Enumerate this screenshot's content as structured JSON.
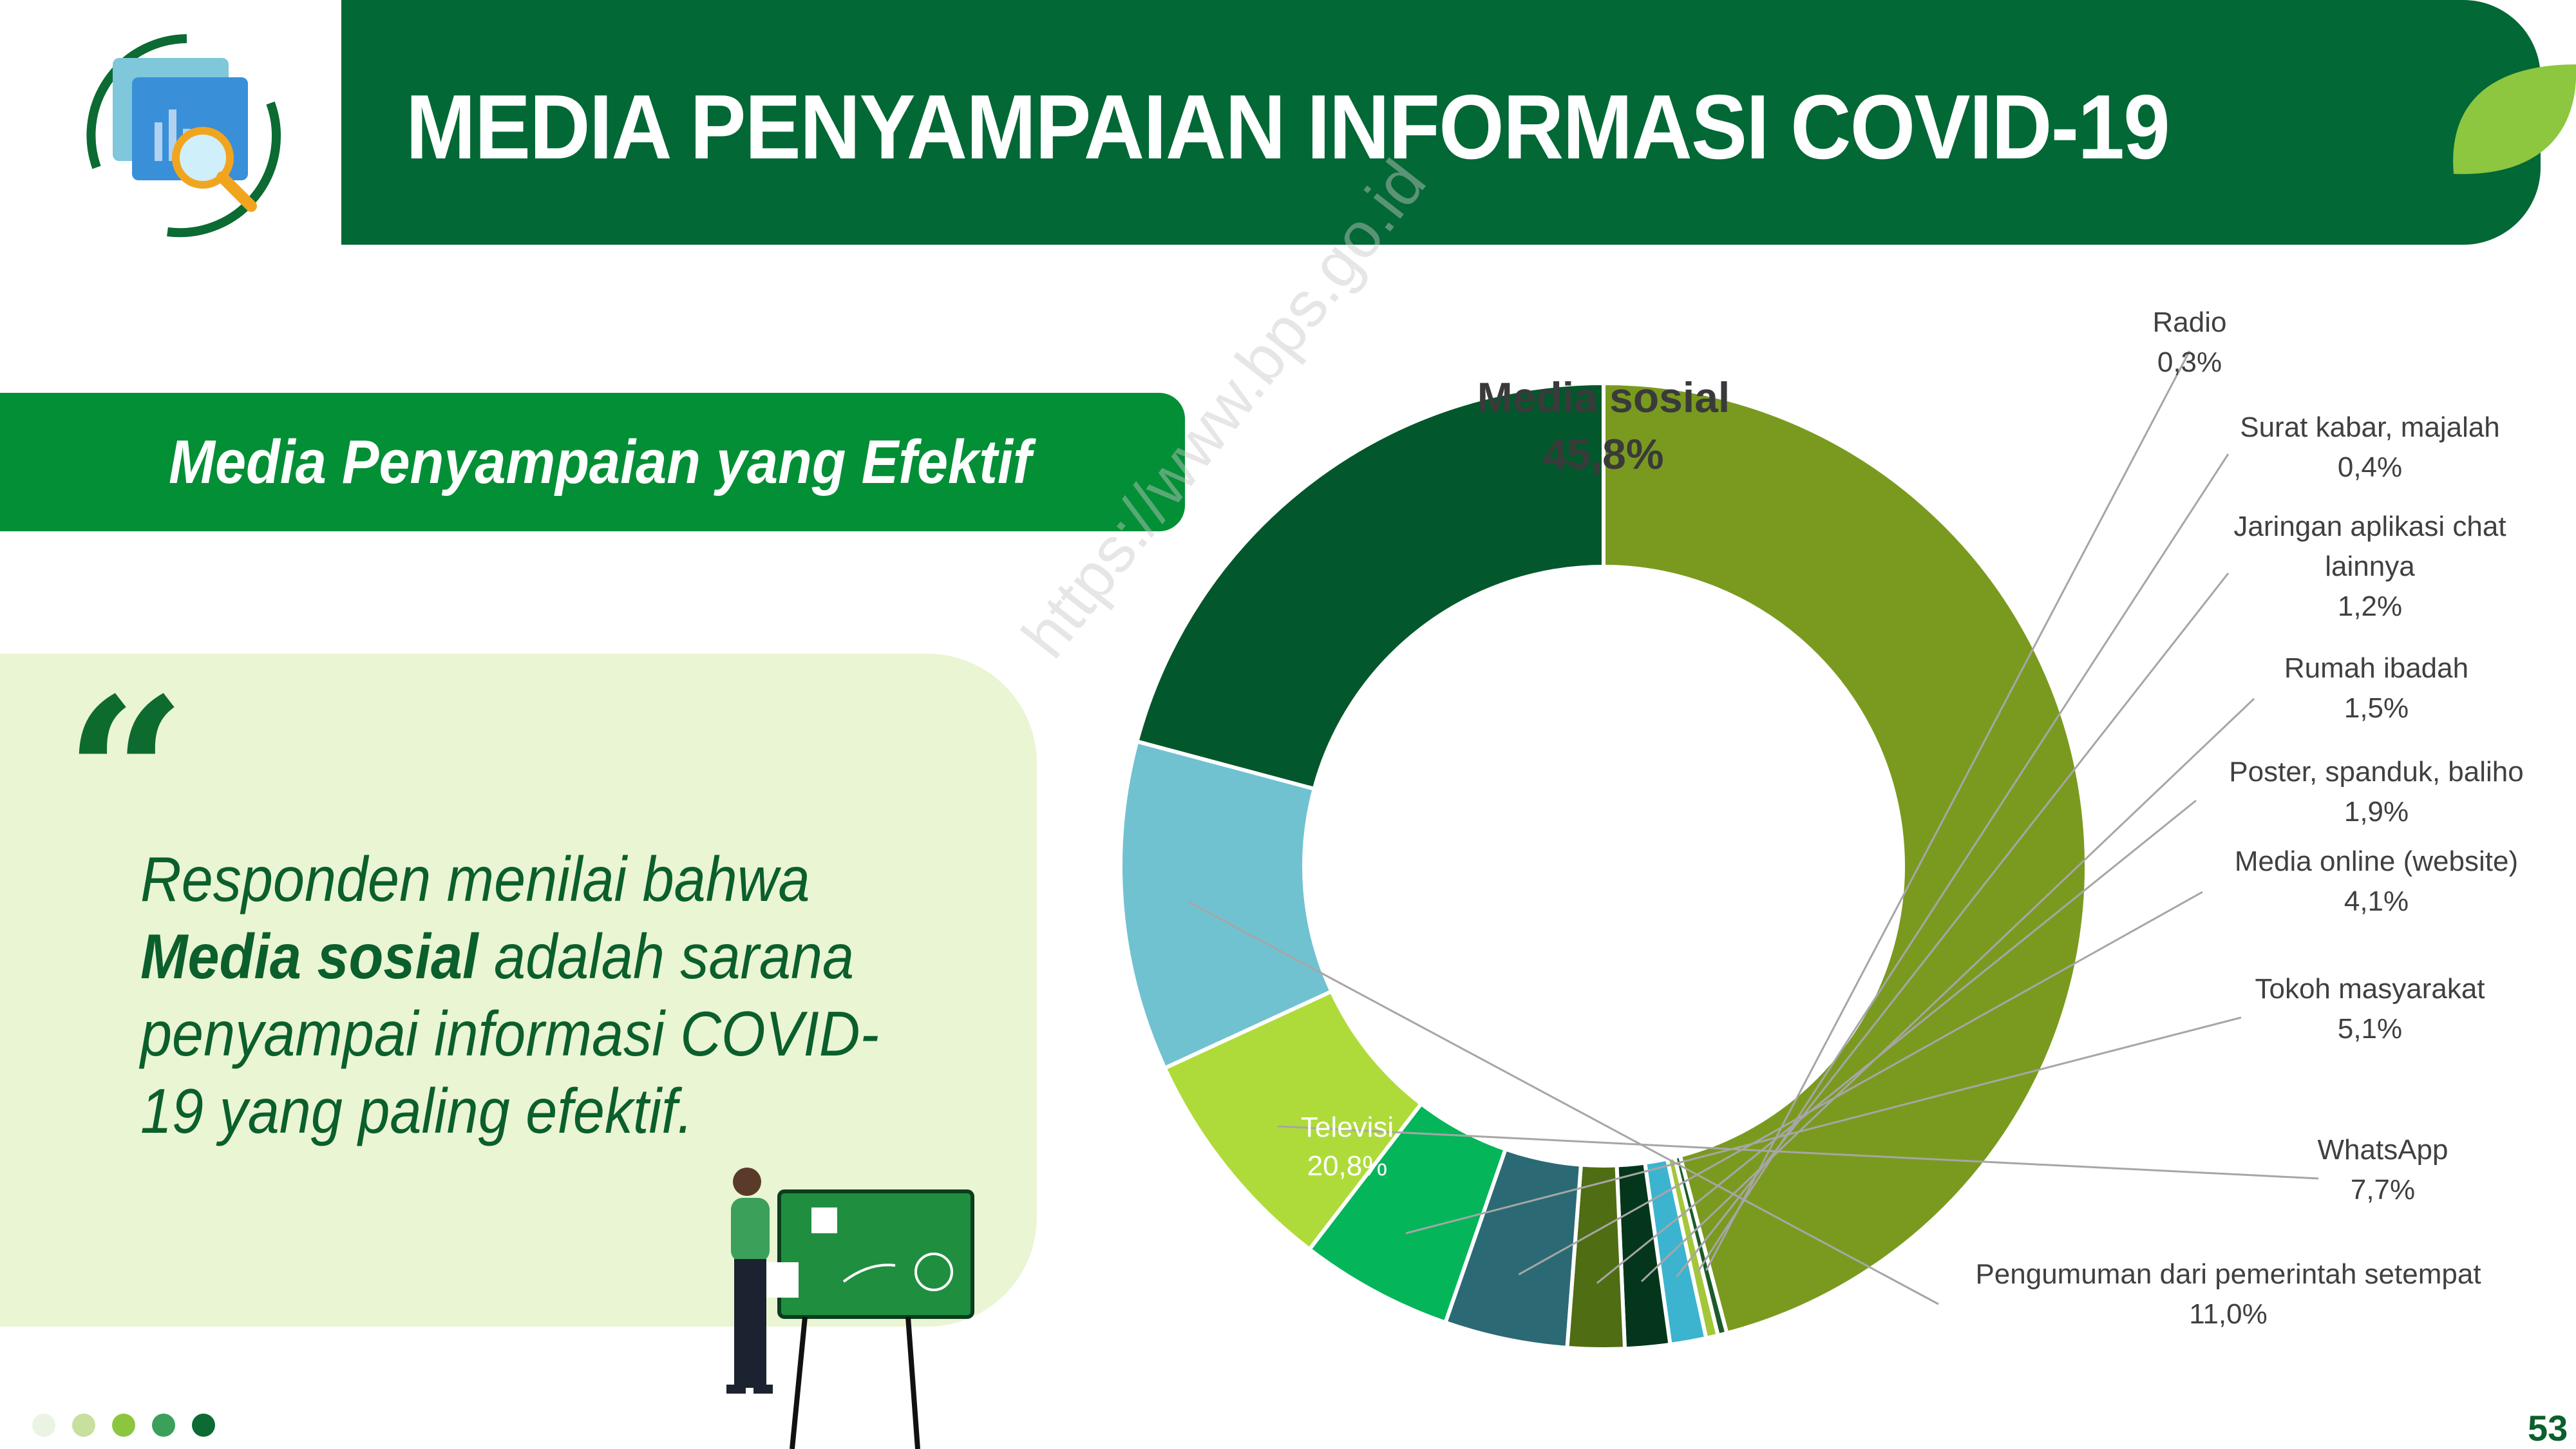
{
  "header": {
    "title": "MEDIA PENYAMPAIAN INFORMASI COVID-19",
    "bar_color": "#026835",
    "logo_icon": "report-magnifier-icon",
    "leaf_icon": "leaf-icon"
  },
  "subtitle": {
    "text": "Media Penyampaian yang Efektif",
    "color": "#038f36"
  },
  "quote": {
    "mark": "“",
    "text_before": "Responden menilai bahwa ",
    "text_bold": "Media sosial",
    "text_after": " adalah sarana penyampai informasi COVID-19 yang paling efektif.",
    "panel_color": "#eaf5d3"
  },
  "watermark": "https://www.bps.go.id",
  "page_number": "53",
  "pagination_dots": [
    "#ebf3e3",
    "#c8df9e",
    "#8cc63f",
    "#3aa05a",
    "#0b6b32"
  ],
  "chart_data": {
    "type": "pie",
    "variant": "donut",
    "title": "",
    "start_angle_deg": 90,
    "direction": "clockwise",
    "slices": [
      {
        "label": "Media sosial",
        "value": 45.8,
        "display": "45,8%",
        "color": "#7a9a1f",
        "label_position": "inside-top"
      },
      {
        "label": "Radio",
        "value": 0.3,
        "display": "0,3%",
        "color": "#1c5c2a",
        "label_position": "callout"
      },
      {
        "label": "Surat kabar, majalah",
        "value": 0.4,
        "display": "0,4%",
        "color": "#a4c639",
        "label_position": "callout"
      },
      {
        "label": "Jaringan aplikasi chat lainnya",
        "label_line1": "Jaringan aplikasi chat",
        "label_line2": "lainnya",
        "value": 1.2,
        "display": "1,2%",
        "color": "#3cb4cf",
        "label_position": "callout"
      },
      {
        "label": "Rumah ibadah",
        "value": 1.5,
        "display": "1,5%",
        "color": "#04361b",
        "label_position": "callout"
      },
      {
        "label": "Poster, spanduk, baliho",
        "value": 1.9,
        "display": "1,9%",
        "color": "#4f6d12",
        "label_position": "callout"
      },
      {
        "label": "Media online (website)",
        "value": 4.1,
        "display": "4,1%",
        "color": "#2b6a74",
        "label_position": "callout"
      },
      {
        "label": "Tokoh masyarakat",
        "value": 5.1,
        "display": "5,1%",
        "color": "#05b55a",
        "label_position": "callout"
      },
      {
        "label": "WhatsApp",
        "value": 7.7,
        "display": "7,7%",
        "color": "#afdb3a",
        "label_position": "callout"
      },
      {
        "label": "Pengumuman dari pemerintah setempat",
        "value": 11.0,
        "display": "11,0%",
        "color": "#70c2d1",
        "label_position": "callout"
      },
      {
        "label": "Televisi",
        "value": 20.8,
        "display": "20,8%",
        "color": "#03572c",
        "label_position": "inside"
      }
    ]
  }
}
